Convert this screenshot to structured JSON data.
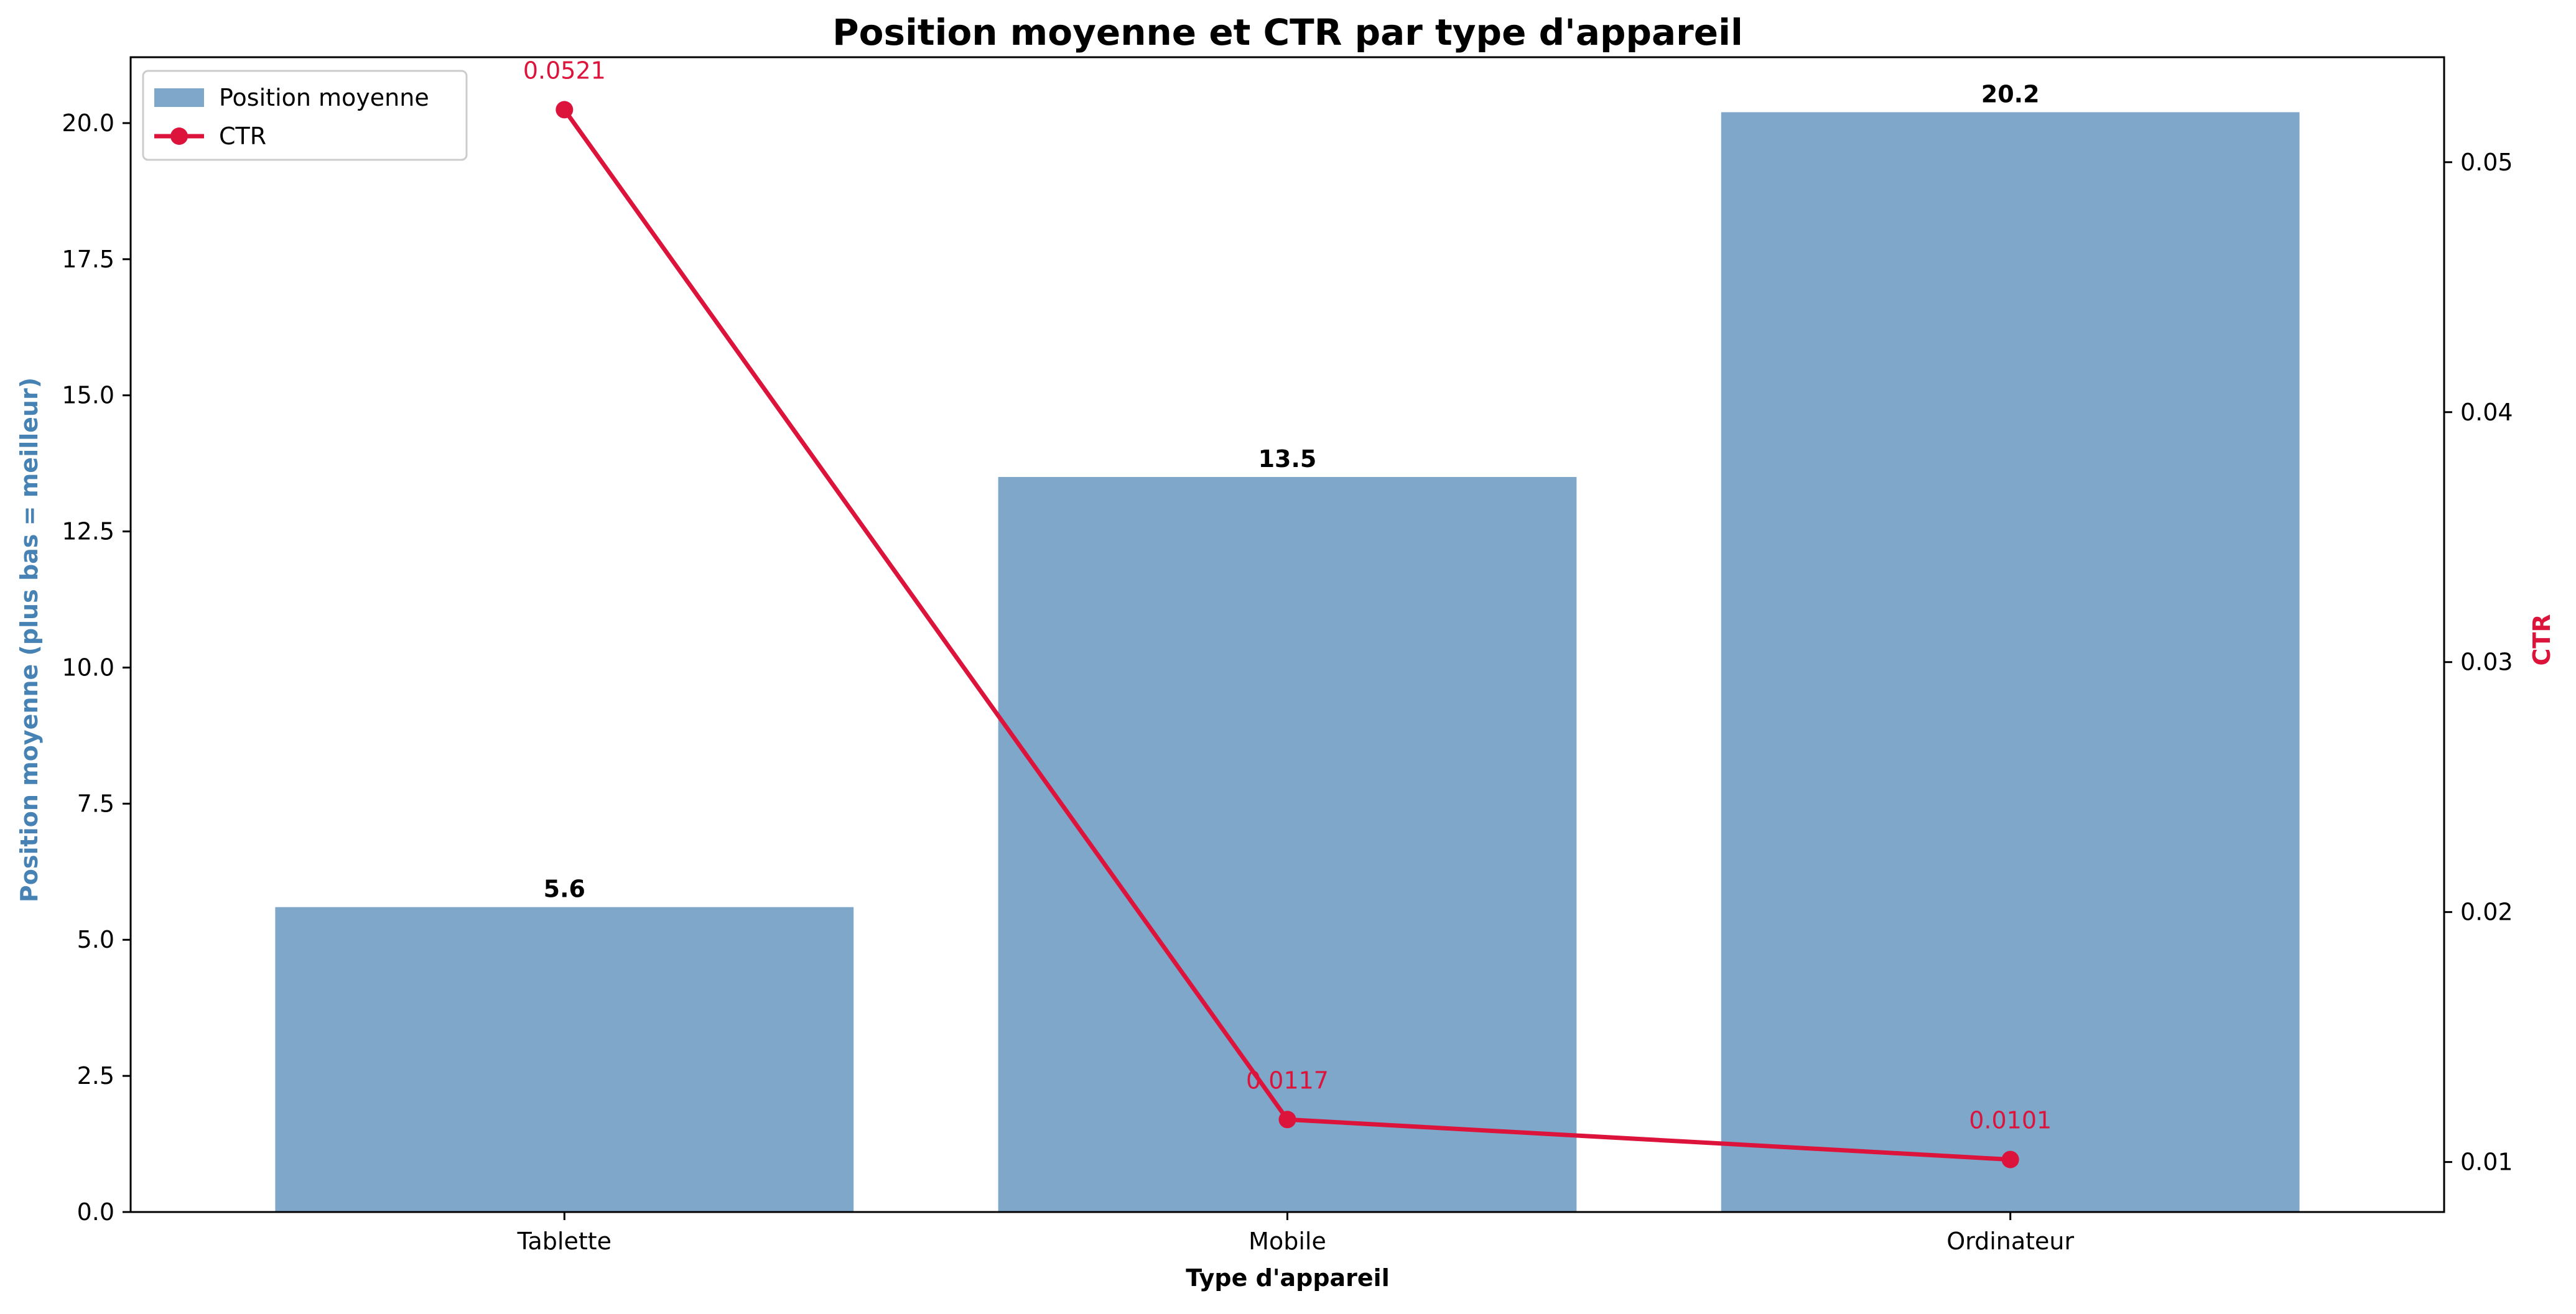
{
  "chart_data": {
    "type": "bar",
    "title": "Position moyenne et CTR par type d'appareil",
    "xlabel": "Type d'appareil",
    "categories": [
      "Tablette",
      "Mobile",
      "Ordinateur"
    ],
    "series": [
      {
        "name": "Position moyenne",
        "type": "bar",
        "axis": "left",
        "color": "#7ea7ca",
        "values": [
          5.6,
          13.5,
          20.2
        ],
        "labels": [
          "5.6",
          "13.5",
          "20.2"
        ]
      },
      {
        "name": "CTR",
        "type": "line",
        "axis": "right",
        "color": "#dc143c",
        "values": [
          0.0521,
          0.0117,
          0.0101
        ],
        "labels": [
          "0.0521",
          "0.0117",
          "0.0101"
        ]
      }
    ],
    "y_left": {
      "label": "Position moyenne (plus bas = meilleur)",
      "color": "#4682b4",
      "range": [
        0,
        21.21
      ],
      "ticks": [
        0,
        2.5,
        5,
        7.5,
        10,
        12.5,
        15,
        17.5,
        20
      ],
      "tick_labels": [
        "0.0",
        "2.5",
        "5.0",
        "7.5",
        "10.0",
        "12.5",
        "15.0",
        "17.5",
        "20.0"
      ]
    },
    "y_right": {
      "label": "CTR",
      "color": "#dc143c",
      "range": [
        0.008,
        0.0542
      ],
      "ticks": [
        0.01,
        0.02,
        0.03,
        0.04,
        0.05
      ],
      "tick_labels": [
        "0.01",
        "0.02",
        "0.03",
        "0.04",
        "0.05"
      ]
    },
    "legend": {
      "placement": "top-left",
      "entries": [
        "Position moyenne",
        "CTR"
      ]
    },
    "grid": false
  }
}
